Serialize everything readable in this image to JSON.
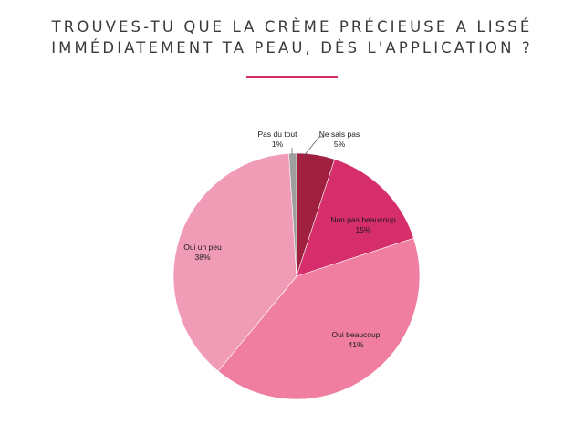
{
  "title_lines": [
    "TROUVES-TU QUE LA CRÈME PRÉCIEUSE A LISSÉ",
    "IMMÉDIATEMENT TA PEAU, DÈS L'APPLICATION ?"
  ],
  "colors": {
    "accent": "#d62d6b",
    "slices": [
      "#a0213f",
      "#d62d6b",
      "#ef7ea0",
      "#f09cb6",
      "#9e9e9e"
    ]
  },
  "chart_data": {
    "type": "pie",
    "title": "TROUVES-TU QUE LA CRÈME PRÉCIEUSE A LISSÉ IMMÉDIATEMENT TA PEAU, DÈS L'APPLICATION ?",
    "slices": [
      {
        "label": "Ne sais pas",
        "value": 5,
        "display": "5%"
      },
      {
        "label": "Non pas beaucoup",
        "value": 15,
        "display": "15%"
      },
      {
        "label": "Oui beaucoup",
        "value": 41,
        "display": "41%"
      },
      {
        "label": "Oui un peu",
        "value": 38,
        "display": "38%"
      },
      {
        "label": "Pas du tout",
        "value": 1,
        "display": "1%"
      }
    ],
    "legend": "none"
  }
}
